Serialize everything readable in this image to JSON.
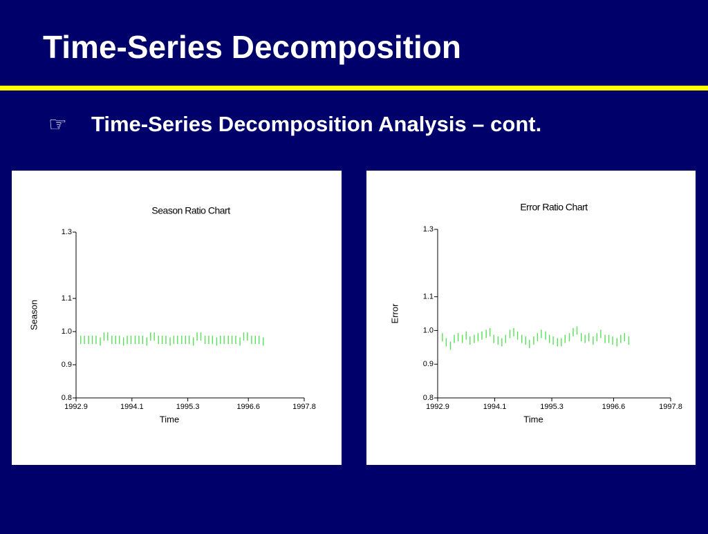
{
  "slide": {
    "title": "Time-Series Decomposition",
    "bullet_icon": "☞",
    "bullet": "Time-Series Decomposition Analysis – cont."
  },
  "chart_data": [
    {
      "type": "dash",
      "title": "Season Ratio Chart",
      "x_label": "Time",
      "y_label": "Season",
      "color": "#55e055",
      "xlim": [
        1992.9,
        1997.8
      ],
      "xticks": [
        1992.9,
        1994.1,
        1995.3,
        1996.6,
        1997.8
      ],
      "ylim": [
        0.8,
        1.3
      ],
      "yticks": [
        0.8,
        0.9,
        {
          "value": 1.0,
          "label": "1.0"
        },
        1.1,
        1.3
      ],
      "x": [
        1993.0,
        1993.08,
        1993.17,
        1993.25,
        1993.33,
        1993.42,
        1993.5,
        1993.58,
        1993.67,
        1993.75,
        1993.83,
        1993.92,
        1994.0,
        1994.08,
        1994.17,
        1994.25,
        1994.33,
        1994.42,
        1994.5,
        1994.58,
        1994.67,
        1994.75,
        1994.83,
        1994.92,
        1995.0,
        1995.08,
        1995.17,
        1995.25,
        1995.33,
        1995.42,
        1995.5,
        1995.58,
        1995.67,
        1995.75,
        1995.83,
        1995.92,
        1996.0,
        1996.08,
        1996.17,
        1996.25,
        1996.33,
        1996.42,
        1996.5,
        1996.58,
        1996.67,
        1996.75,
        1996.83,
        1996.92
      ],
      "values": [
        0.975,
        0.975,
        0.975,
        0.975,
        0.975,
        0.97,
        0.985,
        0.985,
        0.975,
        0.975,
        0.975,
        0.97,
        0.975,
        0.975,
        0.975,
        0.975,
        0.975,
        0.97,
        0.985,
        0.985,
        0.975,
        0.975,
        0.975,
        0.97,
        0.975,
        0.975,
        0.975,
        0.975,
        0.975,
        0.97,
        0.985,
        0.985,
        0.975,
        0.975,
        0.975,
        0.97,
        0.975,
        0.975,
        0.975,
        0.975,
        0.975,
        0.97,
        0.985,
        0.985,
        0.975,
        0.975,
        0.975,
        0.97
      ]
    },
    {
      "type": "dash",
      "title": "Error Ratio Chart",
      "x_label": "Time",
      "y_label": "Error",
      "color": "#55e055",
      "xlim": [
        1992.9,
        1997.8
      ],
      "xticks": [
        1992.9,
        1994.1,
        1995.3,
        1996.6,
        1997.8
      ],
      "ylim": [
        0.8,
        1.3
      ],
      "yticks": [
        0.8,
        0.9,
        {
          "value": 1.0,
          "label": "1.0"
        },
        1.1,
        1.3
      ],
      "x": [
        1993.0,
        1993.08,
        1993.17,
        1993.25,
        1993.33,
        1993.42,
        1993.5,
        1993.58,
        1993.67,
        1993.75,
        1993.83,
        1993.92,
        1994.0,
        1994.08,
        1994.17,
        1994.25,
        1994.33,
        1994.42,
        1994.5,
        1994.58,
        1994.67,
        1994.75,
        1994.83,
        1994.92,
        1995.0,
        1995.08,
        1995.17,
        1995.25,
        1995.33,
        1995.42,
        1995.5,
        1995.58,
        1995.67,
        1995.75,
        1995.83,
        1995.92,
        1996.0,
        1996.08,
        1996.17,
        1996.25,
        1996.33,
        1996.42,
        1996.5,
        1996.58,
        1996.67,
        1996.75,
        1996.83,
        1996.92
      ],
      "values": [
        0.98,
        0.965,
        0.955,
        0.975,
        0.98,
        0.975,
        0.985,
        0.97,
        0.975,
        0.98,
        0.985,
        0.99,
        0.995,
        0.975,
        0.97,
        0.965,
        0.975,
        0.99,
        0.995,
        0.985,
        0.975,
        0.97,
        0.96,
        0.97,
        0.98,
        0.99,
        0.985,
        0.975,
        0.97,
        0.965,
        0.965,
        0.975,
        0.98,
        0.995,
        1.0,
        0.98,
        0.975,
        0.98,
        0.97,
        0.98,
        0.99,
        0.975,
        0.975,
        0.97,
        0.965,
        0.975,
        0.98,
        0.97
      ]
    }
  ]
}
